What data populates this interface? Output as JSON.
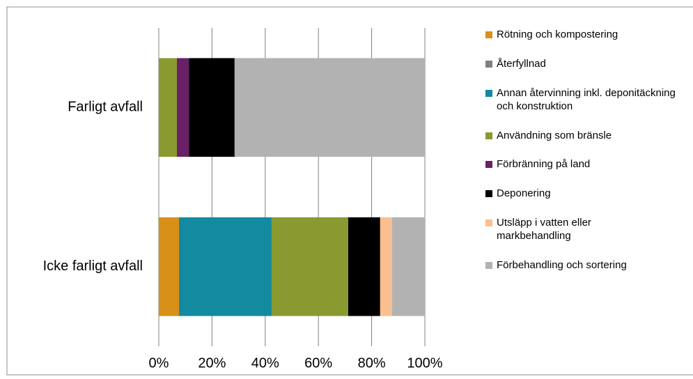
{
  "chart_data": {
    "type": "stacked_bar_horizontal",
    "categories": [
      "Farligt avfall",
      "Icke farligt avfall"
    ],
    "series": [
      {
        "name": "Rötning och kompostering",
        "color": "#d89018",
        "values": [
          0,
          7.6
        ]
      },
      {
        "name": "Återfyllnad",
        "color": "#808080",
        "values": [
          0,
          0
        ]
      },
      {
        "name": "Annan återvinning inkl. deponitäckning och konstruktion",
        "color": "#138aa0",
        "values": [
          0,
          34.8
        ]
      },
      {
        "name": "Användning som bränsle",
        "color": "#8a9a30",
        "values": [
          6.8,
          28.8
        ]
      },
      {
        "name": "Förbränning på land",
        "color": "#6a2066",
        "values": [
          4.5,
          0
        ]
      },
      {
        "name": "Deponering",
        "color": "#000000",
        "values": [
          17.2,
          12
        ]
      },
      {
        "name": "Utsläpp i vatten eller markbehandling",
        "color": "#f9bf8f",
        "values": [
          0,
          4.5
        ]
      },
      {
        "name": "Förbehandling och sortering",
        "color": "#b2b2b2",
        "values": [
          71.5,
          12.3
        ]
      }
    ],
    "xlim": [
      0,
      100
    ],
    "xticks": [
      {
        "value": 0,
        "label": "0%"
      },
      {
        "value": 20,
        "label": "20%"
      },
      {
        "value": 40,
        "label": "40%"
      },
      {
        "value": 60,
        "label": "60%"
      },
      {
        "value": 80,
        "label": "80%"
      },
      {
        "value": 100,
        "label": "100%"
      }
    ],
    "grid": true,
    "legend": "right"
  }
}
